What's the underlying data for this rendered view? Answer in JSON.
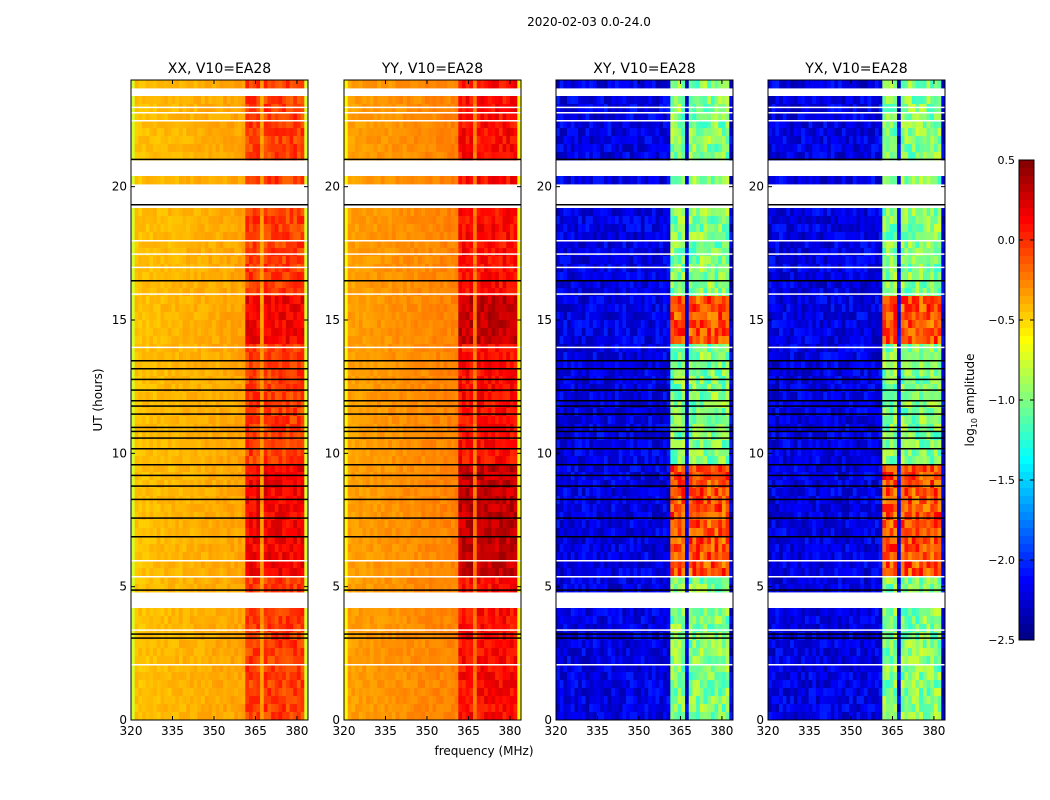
{
  "chart_data": {
    "type": "heatmap",
    "suptitle": "2020-02-03 0.0-24.0",
    "xlabel": "frequency (MHz)",
    "ylabel": "UT (hours)",
    "xlim": [
      320,
      384
    ],
    "ylim": [
      0,
      24
    ],
    "xticks": [
      320,
      335,
      350,
      365,
      380
    ],
    "yticks": [
      0,
      5,
      10,
      15,
      20
    ],
    "colorbar": {
      "label": "log10 amplitude",
      "label_main": "log",
      "label_sub": "10",
      "label_rest": " amplitude",
      "range": [
        -2.5,
        0.5
      ],
      "ticks": [
        "0.5",
        "0.0",
        "−0.5",
        "−1.0",
        "−1.5",
        "−2.0",
        "−2.5"
      ],
      "tick_values": [
        0.5,
        0.0,
        -0.5,
        -1.0,
        -1.5,
        -2.0,
        -2.5
      ],
      "colormap": "jet"
    },
    "flagged_time_ranges": [
      [
        4.23,
        4.68
      ],
      [
        19.33,
        19.98
      ],
      [
        20.5,
        21.1
      ],
      [
        23.4,
        23.67
      ]
    ],
    "black_lines_ut": [
      3.1,
      3.25,
      4.9,
      6.9,
      7.6,
      8.3,
      8.8,
      9.2,
      9.6,
      10.2,
      10.6,
      10.85,
      11.0,
      11.5,
      11.8,
      12.0,
      12.4,
      12.8,
      13.2,
      13.5,
      16.5,
      19.35,
      21.05
    ],
    "white_lines_ut": [
      2.1,
      3.4,
      5.4,
      6.0,
      14.0,
      16.0,
      17.0,
      17.5,
      18.0,
      22.5,
      22.8,
      23.0
    ],
    "panels": [
      {
        "title": "XX, V10=EA28",
        "base": -0.45,
        "band_level": -0.05,
        "edge_level": -0.75,
        "cross": false
      },
      {
        "title": "YY, V10=EA28",
        "base": -0.35,
        "band_level": 0.1,
        "edge_level": -0.6,
        "cross": false
      },
      {
        "title": "XY, V10=EA28",
        "base": -2.2,
        "band_level": -1.0,
        "edge_level": -2.2,
        "cross": true
      },
      {
        "title": "YX, V10=EA28",
        "base": -2.2,
        "band_level": -1.0,
        "edge_level": -2.2,
        "cross": true
      }
    ],
    "rfi_bands_mhz": [
      [
        362,
        367
      ],
      [
        368,
        373
      ],
      [
        374,
        377
      ],
      [
        378,
        382
      ]
    ]
  }
}
